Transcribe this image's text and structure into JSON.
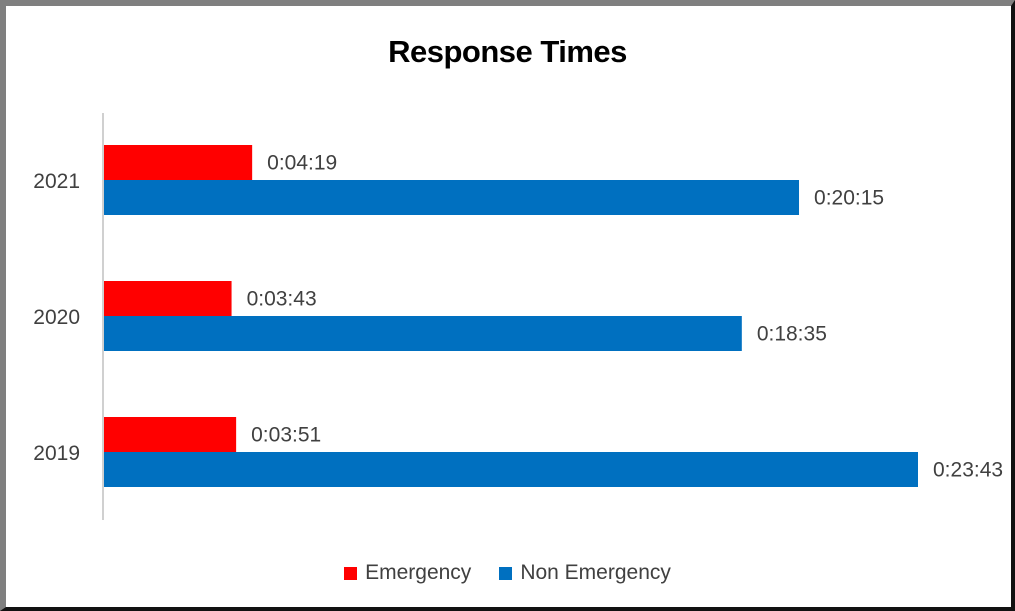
{
  "chart_data": {
    "type": "bar",
    "orientation": "horizontal",
    "title": "Response Times",
    "categories": [
      "2021",
      "2020",
      "2019"
    ],
    "series": [
      {
        "name": "Emergency",
        "color": "#FF0000",
        "values_seconds": [
          259,
          223,
          231
        ],
        "labels": [
          "0:04:19",
          "0:03:43",
          "0:03:51"
        ]
      },
      {
        "name": "Non Emergency",
        "color": "#0070C0",
        "values_seconds": [
          1215,
          1115,
          1423
        ],
        "labels": [
          "0:20:15",
          "0:18:35",
          "0:23:43"
        ]
      }
    ],
    "xlim_seconds": [
      0,
      1423
    ],
    "x_axis_visible": false,
    "grid": false,
    "legend_position": "bottom"
  }
}
